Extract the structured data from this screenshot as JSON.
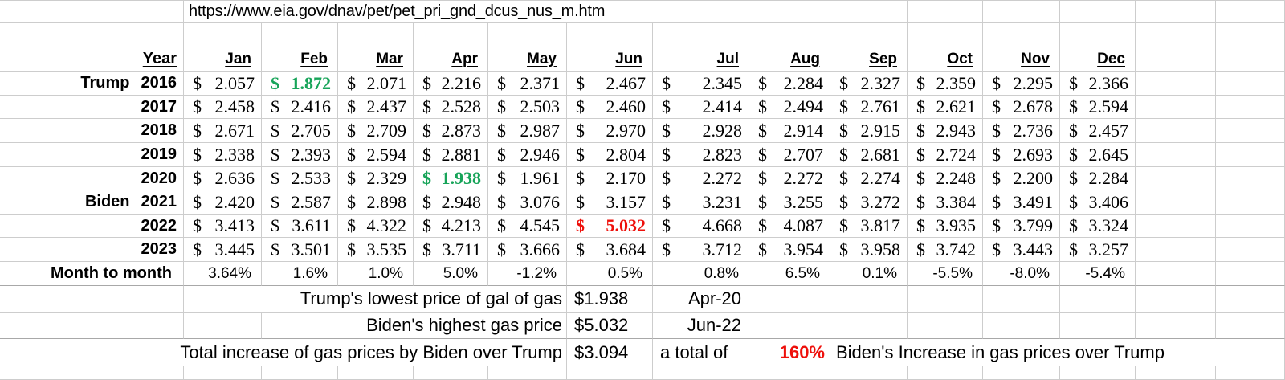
{
  "app": {
    "url_cell": "https://www.eia.gov/dnav/pet/pet_pri_gnd_dcus_nus_m.htm"
  },
  "colors": {
    "green": "#17a459",
    "red": "#ee100b"
  },
  "currency_symbol": "$",
  "header": {
    "year": "Year",
    "months": [
      "Jan",
      "Feb",
      "Mar",
      "Apr",
      "May",
      "Jun",
      "Jul",
      "Aug",
      "Sep",
      "Oct",
      "Nov",
      "Dec"
    ]
  },
  "price_rows": [
    {
      "label": "Trump",
      "year": "2016",
      "values": [
        "2.057",
        "1.872",
        "2.071",
        "2.216",
        "2.371",
        "2.467",
        "2.345",
        "2.284",
        "2.327",
        "2.359",
        "2.295",
        "2.366"
      ],
      "highlight": {
        "index": 1,
        "color": "green"
      }
    },
    {
      "label": "",
      "year": "2017",
      "values": [
        "2.458",
        "2.416",
        "2.437",
        "2.528",
        "2.503",
        "2.460",
        "2.414",
        "2.494",
        "2.761",
        "2.621",
        "2.678",
        "2.594"
      ]
    },
    {
      "label": "",
      "year": "2018",
      "values": [
        "2.671",
        "2.705",
        "2.709",
        "2.873",
        "2.987",
        "2.970",
        "2.928",
        "2.914",
        "2.915",
        "2.943",
        "2.736",
        "2.457"
      ]
    },
    {
      "label": "",
      "year": "2019",
      "values": [
        "2.338",
        "2.393",
        "2.594",
        "2.881",
        "2.946",
        "2.804",
        "2.823",
        "2.707",
        "2.681",
        "2.724",
        "2.693",
        "2.645"
      ]
    },
    {
      "label": "",
      "year": "2020",
      "values": [
        "2.636",
        "2.533",
        "2.329",
        "1.938",
        "1.961",
        "2.170",
        "2.272",
        "2.272",
        "2.274",
        "2.248",
        "2.200",
        "2.284"
      ],
      "highlight": {
        "index": 3,
        "color": "green"
      }
    },
    {
      "label": "Biden",
      "year": "2021",
      "values": [
        "2.420",
        "2.587",
        "2.898",
        "2.948",
        "3.076",
        "3.157",
        "3.231",
        "3.255",
        "3.272",
        "3.384",
        "3.491",
        "3.406"
      ]
    },
    {
      "label": "",
      "year": "2022",
      "values": [
        "3.413",
        "3.611",
        "4.322",
        "4.213",
        "4.545",
        "5.032",
        "4.668",
        "4.087",
        "3.817",
        "3.935",
        "3.799",
        "3.324"
      ],
      "highlight": {
        "index": 5,
        "color": "red"
      }
    },
    {
      "label": "",
      "year": "2023",
      "values": [
        "3.445",
        "3.501",
        "3.535",
        "3.711",
        "3.666",
        "3.684",
        "3.712",
        "3.954",
        "3.958",
        "3.742",
        "3.443",
        "3.257"
      ]
    }
  ],
  "month_to_month": {
    "label": "Month to month",
    "values": [
      "3.64%",
      "1.6%",
      "1.0%",
      "5.0%",
      "-1.2%",
      "0.5%",
      "0.8%",
      "6.5%",
      "0.1%",
      "-5.5%",
      "-8.0%",
      "-5.4%"
    ]
  },
  "summary": {
    "trump_low": {
      "label": "Trump's lowest price of gal of gas",
      "value": "$1.938",
      "date": "Apr-20"
    },
    "biden_high": {
      "label": "Biden's highest gas price",
      "value": "$5.032",
      "date": "Jun-22"
    },
    "total": {
      "label": "Total increase of gas prices by Biden over Trump",
      "value": "$3.094",
      "note": "a total of",
      "pct": "160%",
      "tail": "Biden's Increase in gas prices over Trump"
    }
  }
}
